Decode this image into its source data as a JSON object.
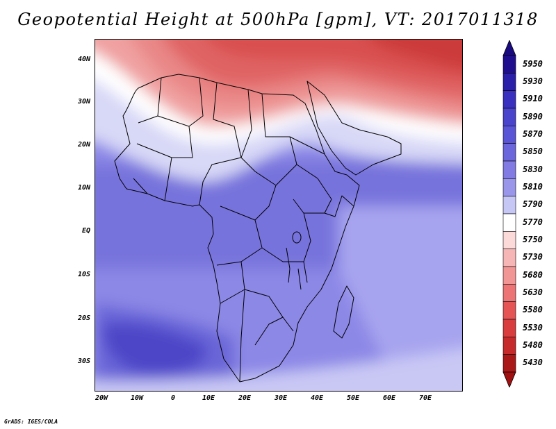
{
  "title": "Geopotential Height at 500hPa [gpm], VT: 2017011318",
  "credit": "GrADS: IGES/COLA",
  "map": {
    "region": "Africa",
    "lat_labels": [
      "40N",
      "30N",
      "20N",
      "10N",
      "EQ",
      "10S",
      "20S",
      "30S"
    ],
    "lat_values": [
      40,
      30,
      20,
      10,
      0,
      -10,
      -20,
      -30
    ],
    "lon_labels": [
      "20W",
      "10W",
      "0",
      "10E",
      "20E",
      "30E",
      "40E",
      "50E",
      "60E",
      "70E"
    ],
    "lon_values": [
      -20,
      -10,
      0,
      10,
      20,
      30,
      40,
      50,
      60,
      70
    ],
    "lon_range": [
      -22.5,
      80
    ],
    "lat_range": [
      -37,
      45
    ]
  },
  "colorbar": {
    "levels": [
      "5950",
      "5930",
      "5910",
      "5890",
      "5870",
      "5850",
      "5830",
      "5810",
      "5790",
      "5770",
      "5750",
      "5730",
      "5680",
      "5630",
      "5580",
      "5530",
      "5480",
      "5430"
    ],
    "colors": [
      "#1f0f8f",
      "#2a1fa8",
      "#3a30c0",
      "#4a43cc",
      "#5a55d6",
      "#6c66dd",
      "#817be3",
      "#9a96ea",
      "#c7c7f5",
      "#ffffff",
      "#fcdada",
      "#f7b6b6",
      "#f29595",
      "#ec7474",
      "#e55555",
      "#d93d3d",
      "#c62a2a",
      "#aa1818"
    ],
    "top_triangle_color": "#1a0a80",
    "bottom_triangle_color": "#a01010"
  }
}
